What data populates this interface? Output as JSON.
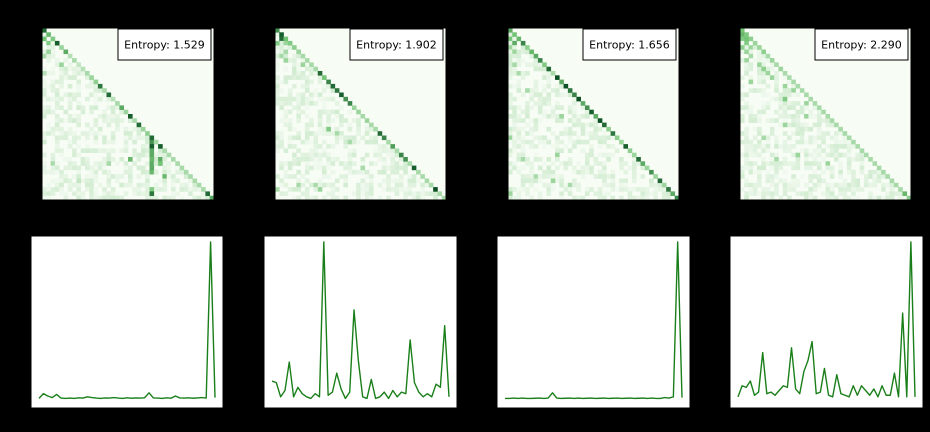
{
  "colors": {
    "background": "#000000",
    "heatmap_low": "#f7fcf5",
    "heatmap_high": "#00441b",
    "line": "#1a7f1a",
    "frame": "#000000"
  },
  "chart_data": [
    {
      "type": "heatmap",
      "id": "heatmap-1",
      "size": 40,
      "grid": false,
      "legend_position": "top-right",
      "annotation": "Entropy: 1.529",
      "seed": 11,
      "diag": [
        [
          0,
          0.85
        ],
        [
          1,
          0.55
        ],
        [
          2,
          0.45
        ],
        [
          3,
          0.9
        ],
        [
          4,
          0.35
        ],
        [
          5,
          0.6
        ],
        [
          6,
          0.25
        ],
        [
          7,
          0.3
        ],
        [
          8,
          0.2
        ],
        [
          9,
          0.25
        ],
        [
          10,
          0.3
        ],
        [
          11,
          0.35
        ],
        [
          12,
          0.4
        ],
        [
          13,
          0.8
        ],
        [
          14,
          0.3
        ],
        [
          15,
          0.85
        ],
        [
          16,
          0.25
        ],
        [
          17,
          0.3
        ],
        [
          18,
          0.6
        ],
        [
          19,
          0.35
        ],
        [
          20,
          0.9
        ],
        [
          21,
          0.3
        ],
        [
          22,
          0.85
        ],
        [
          23,
          0.35
        ],
        [
          24,
          0.4
        ],
        [
          25,
          0.85
        ],
        [
          26,
          0.3
        ],
        [
          27,
          0.9
        ],
        [
          28,
          0.3
        ],
        [
          29,
          0.3
        ],
        [
          30,
          0.3
        ],
        [
          31,
          0.3
        ],
        [
          32,
          0.3
        ],
        [
          33,
          0.3
        ],
        [
          34,
          0.3
        ],
        [
          35,
          0.3
        ],
        [
          36,
          0.3
        ],
        [
          37,
          0.3
        ],
        [
          38,
          0.85
        ],
        [
          39,
          0.6
        ]
      ],
      "spots": [
        [
          2,
          0,
          0.5
        ],
        [
          3,
          1,
          0.45
        ],
        [
          5,
          1,
          0.35
        ],
        [
          6,
          0,
          0.3
        ],
        [
          8,
          4,
          0.35
        ],
        [
          10,
          0,
          0.25
        ],
        [
          24,
          26,
          0.0
        ],
        [
          25,
          25,
          0.85
        ],
        [
          26,
          25,
          0.7
        ],
        [
          27,
          25,
          0.9
        ],
        [
          28,
          25,
          0.6
        ],
        [
          29,
          25,
          0.6
        ],
        [
          30,
          25,
          0.55
        ],
        [
          31,
          25,
          0.6
        ],
        [
          32,
          25,
          0.6
        ],
        [
          33,
          25,
          0.55
        ],
        [
          37,
          25,
          0.45
        ],
        [
          38,
          25,
          0.8
        ],
        [
          30,
          27,
          0.6
        ],
        [
          31,
          27,
          0.5
        ],
        [
          34,
          28,
          0.55
        ],
        [
          30,
          20,
          0.55
        ],
        [
          31,
          15,
          0.3
        ],
        [
          31,
          2,
          0.3
        ],
        [
          35,
          8,
          0.2
        ]
      ]
    },
    {
      "type": "heatmap",
      "id": "heatmap-2",
      "size": 40,
      "grid": false,
      "legend_position": "top-right",
      "annotation": "Entropy: 1.902",
      "seed": 23,
      "diag": [
        [
          0,
          0.7
        ],
        [
          1,
          0.65
        ],
        [
          2,
          0.5
        ],
        [
          3,
          0.45
        ],
        [
          4,
          0.4
        ],
        [
          5,
          0.35
        ],
        [
          6,
          0.3
        ],
        [
          7,
          0.3
        ],
        [
          8,
          0.3
        ],
        [
          9,
          0.3
        ],
        [
          10,
          0.85
        ],
        [
          11,
          0.5
        ],
        [
          12,
          0.75
        ],
        [
          13,
          0.85
        ],
        [
          14,
          0.8
        ],
        [
          15,
          0.9
        ],
        [
          16,
          0.7
        ],
        [
          17,
          0.75
        ],
        [
          18,
          0.35
        ],
        [
          19,
          0.35
        ],
        [
          20,
          0.3
        ],
        [
          21,
          0.35
        ],
        [
          22,
          0.3
        ],
        [
          23,
          0.3
        ],
        [
          24,
          0.85
        ],
        [
          25,
          0.75
        ],
        [
          26,
          0.3
        ],
        [
          27,
          0.65
        ],
        [
          28,
          0.3
        ],
        [
          29,
          0.75
        ],
        [
          30,
          0.7
        ],
        [
          31,
          0.3
        ],
        [
          32,
          0.9
        ],
        [
          33,
          0.3
        ],
        [
          34,
          0.3
        ],
        [
          35,
          0.3
        ],
        [
          36,
          0.3
        ],
        [
          37,
          0.95
        ],
        [
          38,
          0.3
        ],
        [
          39,
          0.3
        ]
      ],
      "spots": [
        [
          1,
          1,
          0.9
        ],
        [
          2,
          1,
          0.85
        ],
        [
          3,
          0,
          0.45
        ],
        [
          3,
          2,
          0.35
        ],
        [
          5,
          2,
          0.3
        ],
        [
          6,
          1,
          0.3
        ],
        [
          7,
          2,
          0.35
        ],
        [
          8,
          6,
          0.35
        ],
        [
          23,
          12,
          0.45
        ],
        [
          26,
          17,
          0.3
        ],
        [
          32,
          20,
          0.3
        ],
        [
          36,
          9,
          0.3
        ],
        [
          36,
          5,
          0.3
        ],
        [
          37,
          0,
          0.3
        ],
        [
          37,
          10,
          0.35
        ],
        [
          24,
          14,
          0.3
        ]
      ]
    },
    {
      "type": "heatmap",
      "id": "heatmap-3",
      "size": 40,
      "grid": false,
      "legend_position": "top-right",
      "annotation": "Entropy: 1.656",
      "seed": 37,
      "diag": [
        [
          0,
          0.6
        ],
        [
          1,
          0.5
        ],
        [
          2,
          0.55
        ],
        [
          3,
          0.75
        ],
        [
          4,
          0.4
        ],
        [
          5,
          0.55
        ],
        [
          6,
          0.6
        ],
        [
          7,
          0.75
        ],
        [
          8,
          0.45
        ],
        [
          9,
          0.85
        ],
        [
          10,
          0.3
        ],
        [
          11,
          0.95
        ],
        [
          12,
          0.6
        ],
        [
          13,
          0.95
        ],
        [
          14,
          0.8
        ],
        [
          15,
          0.75
        ],
        [
          16,
          0.95
        ],
        [
          17,
          0.6
        ],
        [
          18,
          0.7
        ],
        [
          19,
          0.9
        ],
        [
          20,
          0.6
        ],
        [
          21,
          0.95
        ],
        [
          22,
          0.85
        ],
        [
          23,
          0.4
        ],
        [
          24,
          0.8
        ],
        [
          25,
          0.4
        ],
        [
          26,
          0.35
        ],
        [
          27,
          0.9
        ],
        [
          28,
          0.4
        ],
        [
          29,
          0.35
        ],
        [
          30,
          0.85
        ],
        [
          31,
          0.6
        ],
        [
          32,
          0.35
        ],
        [
          33,
          0.7
        ],
        [
          34,
          0.35
        ],
        [
          35,
          0.85
        ],
        [
          36,
          0.35
        ],
        [
          37,
          0.8
        ],
        [
          38,
          0.6
        ],
        [
          39,
          0.75
        ]
      ],
      "spots": [
        [
          2,
          0,
          0.5
        ],
        [
          3,
          1,
          0.6
        ],
        [
          4,
          0,
          0.35
        ],
        [
          5,
          1,
          0.35
        ],
        [
          8,
          1,
          0.3
        ],
        [
          10,
          2,
          0.3
        ],
        [
          14,
          4,
          0.3
        ],
        [
          20,
          12,
          0.35
        ],
        [
          25,
          0,
          0.35
        ],
        [
          29,
          11,
          0.35
        ],
        [
          30,
          3,
          0.3
        ],
        [
          34,
          6,
          0.3
        ],
        [
          35,
          10,
          0.35
        ],
        [
          36,
          14,
          0.3
        ],
        [
          38,
          0,
          0.35
        ]
      ]
    },
    {
      "type": "heatmap",
      "id": "heatmap-4",
      "size": 40,
      "grid": false,
      "legend_position": "top-right",
      "annotation": "Entropy: 2.290",
      "seed": 53,
      "diag": [
        [
          0,
          0.5
        ],
        [
          1,
          0.45
        ],
        [
          2,
          0.4
        ],
        [
          3,
          0.35
        ],
        [
          4,
          0.35
        ],
        [
          5,
          0.4
        ],
        [
          6,
          0.3
        ],
        [
          7,
          0.35
        ],
        [
          8,
          0.3
        ],
        [
          9,
          0.35
        ],
        [
          10,
          0.3
        ],
        [
          11,
          0.3
        ],
        [
          12,
          0.3
        ],
        [
          13,
          0.3
        ],
        [
          14,
          0.3
        ],
        [
          15,
          0.3
        ],
        [
          16,
          0.3
        ],
        [
          17,
          0.3
        ],
        [
          18,
          0.3
        ],
        [
          19,
          0.3
        ],
        [
          20,
          0.3
        ],
        [
          21,
          0.3
        ],
        [
          22,
          0.3
        ],
        [
          23,
          0.3
        ],
        [
          24,
          0.3
        ],
        [
          25,
          0.3
        ],
        [
          26,
          0.3
        ],
        [
          27,
          0.3
        ],
        [
          28,
          0.3
        ],
        [
          29,
          0.3
        ],
        [
          30,
          0.3
        ],
        [
          31,
          0.3
        ],
        [
          32,
          0.3
        ],
        [
          33,
          0.3
        ],
        [
          34,
          0.3
        ],
        [
          35,
          0.3
        ],
        [
          36,
          0.3
        ],
        [
          37,
          0.3
        ],
        [
          38,
          0.55
        ],
        [
          39,
          0.4
        ]
      ],
      "spots": [
        [
          1,
          0,
          0.55
        ],
        [
          2,
          0,
          0.45
        ],
        [
          2,
          1,
          0.5
        ],
        [
          3,
          1,
          0.45
        ],
        [
          4,
          0,
          0.4
        ],
        [
          4,
          2,
          0.35
        ],
        [
          5,
          1,
          0.35
        ],
        [
          6,
          2,
          0.3
        ],
        [
          7,
          1,
          0.35
        ],
        [
          8,
          4,
          0.35
        ],
        [
          9,
          5,
          0.4
        ],
        [
          10,
          6,
          0.35
        ],
        [
          11,
          7,
          0.35
        ],
        [
          12,
          2,
          0.35
        ],
        [
          13,
          10,
          0.35
        ],
        [
          14,
          12,
          0.35
        ],
        [
          16,
          10,
          0.45
        ],
        [
          17,
          15,
          0.35
        ],
        [
          20,
          15,
          0.35
        ],
        [
          22,
          10,
          0.35
        ],
        [
          25,
          5,
          0.3
        ],
        [
          29,
          13,
          0.35
        ],
        [
          30,
          8,
          0.3
        ],
        [
          31,
          20,
          0.35
        ]
      ]
    },
    {
      "type": "line",
      "id": "line-1",
      "grid": false,
      "xlim": [
        0,
        40
      ],
      "values": [
        0.01,
        0.04,
        0.025,
        0.015,
        0.035,
        0.012,
        0.01,
        0.012,
        0.01,
        0.014,
        0.012,
        0.02,
        0.015,
        0.012,
        0.01,
        0.013,
        0.012,
        0.015,
        0.012,
        0.01,
        0.014,
        0.011,
        0.013,
        0.012,
        0.014,
        0.045,
        0.013,
        0.012,
        0.01,
        0.014,
        0.011,
        0.025,
        0.013,
        0.012,
        0.014,
        0.011,
        0.013,
        0.015,
        0.012,
        0.99,
        0.015
      ]
    },
    {
      "type": "line",
      "id": "line-2",
      "grid": false,
      "xlim": [
        0,
        40
      ],
      "values": [
        0.12,
        0.11,
        0.02,
        0.06,
        0.24,
        0.02,
        0.08,
        0.04,
        0.02,
        0.01,
        0.04,
        0.02,
        1.0,
        0.03,
        0.05,
        0.17,
        0.07,
        0.01,
        0.05,
        0.57,
        0.25,
        0.02,
        0.01,
        0.13,
        0.01,
        0.02,
        0.05,
        0.01,
        0.06,
        0.02,
        0.05,
        0.04,
        0.38,
        0.11,
        0.05,
        0.02,
        0.04,
        0.02,
        0.1,
        0.08,
        0.47,
        0.02
      ]
    },
    {
      "type": "line",
      "id": "line-3",
      "grid": false,
      "xlim": [
        0,
        40
      ],
      "values": [
        0.01,
        0.01,
        0.012,
        0.01,
        0.012,
        0.01,
        0.01,
        0.011,
        0.012,
        0.01,
        0.012,
        0.045,
        0.012,
        0.01,
        0.011,
        0.012,
        0.01,
        0.012,
        0.01,
        0.011,
        0.012,
        0.01,
        0.011,
        0.012,
        0.01,
        0.011,
        0.012,
        0.01,
        0.011,
        0.012,
        0.01,
        0.011,
        0.012,
        0.01,
        0.012,
        0.01,
        0.01,
        0.015,
        0.012,
        0.02,
        0.99,
        0.015
      ]
    },
    {
      "type": "line",
      "id": "line-4",
      "grid": false,
      "xlim": [
        0,
        40
      ],
      "values": [
        0.02,
        0.09,
        0.08,
        0.12,
        0.03,
        0.05,
        0.3,
        0.04,
        0.05,
        0.03,
        0.06,
        0.09,
        0.08,
        0.33,
        0.07,
        0.04,
        0.18,
        0.25,
        0.37,
        0.04,
        0.05,
        0.2,
        0.03,
        0.02,
        0.16,
        0.04,
        0.03,
        0.02,
        0.09,
        0.03,
        0.09,
        0.06,
        0.03,
        0.07,
        0.02,
        0.09,
        0.03,
        0.03,
        0.17,
        0.02,
        0.55,
        0.02,
        1.0,
        0.02
      ]
    }
  ]
}
